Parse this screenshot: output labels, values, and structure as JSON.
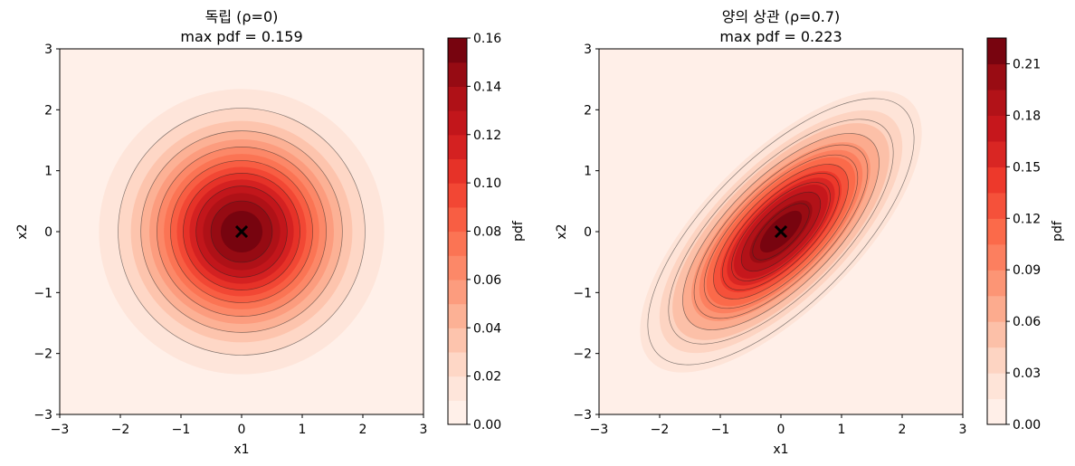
{
  "chart_data": [
    {
      "type": "contour",
      "title": "독립 (ρ=0)",
      "subtitle": "max pdf = 0.159",
      "xlabel": "x1",
      "ylabel": "x2",
      "xlim": [
        -3,
        3
      ],
      "ylim": [
        -3,
        3
      ],
      "xticks": [
        "−3",
        "−2",
        "−1",
        "0",
        "1",
        "2",
        "3"
      ],
      "yticks": [
        "−3",
        "−2",
        "−1",
        "0",
        "1",
        "2",
        "3"
      ],
      "rho": 0,
      "mean": [
        0,
        0
      ],
      "max_pdf": 0.159,
      "colorbar": {
        "label": "pdf",
        "range": [
          0,
          0.16
        ],
        "ticks": [
          "0.00",
          "0.02",
          "0.04",
          "0.06",
          "0.08",
          "0.10",
          "0.12",
          "0.14",
          "0.16"
        ],
        "tick_values": [
          0,
          0.02,
          0.04,
          0.06,
          0.08,
          0.1,
          0.12,
          0.14,
          0.16
        ],
        "levels": [
          0,
          0.01,
          0.02,
          0.03,
          0.04,
          0.05,
          0.06,
          0.07,
          0.08,
          0.09,
          0.1,
          0.11,
          0.12,
          0.13,
          0.14,
          0.15,
          0.16
        ],
        "colormap": "Reds"
      },
      "contour_lines": [
        0.02,
        0.04,
        0.06,
        0.08,
        0.1,
        0.12,
        0.14
      ],
      "marker": {
        "symbol": "x",
        "x": 0,
        "y": 0
      }
    },
    {
      "type": "contour",
      "title": "양의 상관 (ρ=0.7)",
      "subtitle": "max pdf = 0.223",
      "xlabel": "x1",
      "ylabel": "x2",
      "xlim": [
        -3,
        3
      ],
      "ylim": [
        -3,
        3
      ],
      "xticks": [
        "−3",
        "−2",
        "−1",
        "0",
        "1",
        "2",
        "3"
      ],
      "yticks": [
        "−3",
        "−2",
        "−1",
        "0",
        "1",
        "2",
        "3"
      ],
      "rho": 0.7,
      "mean": [
        0,
        0
      ],
      "max_pdf": 0.223,
      "colorbar": {
        "label": "pdf",
        "range": [
          0,
          0.225
        ],
        "ticks": [
          "0.00",
          "0.03",
          "0.06",
          "0.09",
          "0.12",
          "0.15",
          "0.18",
          "0.21"
        ],
        "tick_values": [
          0,
          0.03,
          0.06,
          0.09,
          0.12,
          0.15,
          0.18,
          0.21
        ],
        "levels": [
          0,
          0.015,
          0.03,
          0.045,
          0.06,
          0.075,
          0.09,
          0.105,
          0.12,
          0.135,
          0.15,
          0.165,
          0.18,
          0.195,
          0.21,
          0.225
        ],
        "colormap": "Reds"
      },
      "contour_lines": [
        0.02,
        0.04,
        0.06,
        0.08,
        0.1,
        0.12,
        0.14,
        0.16,
        0.18,
        0.2
      ],
      "marker": {
        "symbol": "x",
        "x": 0,
        "y": 0
      }
    }
  ]
}
